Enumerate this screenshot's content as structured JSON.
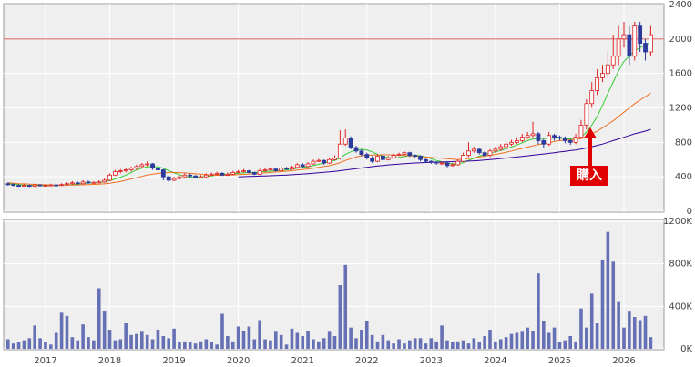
{
  "chart_data": [
    {
      "type": "candlestick",
      "ylim": [
        0,
        2400
      ],
      "yticks": [
        0,
        400,
        800,
        1200,
        1600,
        2000,
        2400
      ],
      "grid": true,
      "up_color": "#e02020",
      "down_color": "#2c3a9c",
      "hline": 2000,
      "hline_color": "#e07070",
      "annotation": "購入",
      "annotation_color": "#e00000",
      "open": [
        320,
        310,
        300,
        295,
        300,
        290,
        305,
        300,
        300,
        305,
        300,
        310,
        320,
        330,
        320,
        340,
        330,
        335,
        340,
        360,
        420,
        460,
        470,
        480,
        500,
        520,
        540,
        550,
        500,
        480,
        400,
        360,
        380,
        400,
        420,
        410,
        390,
        400,
        420,
        430,
        440,
        420,
        430,
        450,
        460,
        470,
        450,
        430,
        470,
        480,
        490,
        470,
        500,
        490,
        510,
        540,
        520,
        550,
        580,
        590,
        560,
        600,
        620,
        780,
        850,
        740,
        700,
        660,
        620,
        580,
        640,
        600,
        620,
        650,
        660,
        680,
        650,
        640,
        600,
        580,
        570,
        560,
        560,
        530,
        540,
        580,
        650,
        700,
        720,
        680,
        650,
        700,
        720,
        750,
        780,
        800,
        820,
        860,
        880,
        900,
        820,
        780,
        880,
        860,
        850,
        820,
        800,
        860,
        1000,
        1250,
        1400,
        1550,
        1600,
        1700,
        1800,
        2000,
        2050,
        1800,
        2150,
        1950,
        1850
      ],
      "high": [
        335,
        325,
        315,
        315,
        310,
        320,
        315,
        310,
        320,
        315,
        325,
        335,
        350,
        345,
        360,
        355,
        350,
        360,
        380,
        440,
        480,
        490,
        500,
        520,
        540,
        560,
        580,
        560,
        510,
        490,
        410,
        400,
        420,
        440,
        435,
        420,
        420,
        440,
        450,
        460,
        455,
        450,
        470,
        480,
        490,
        480,
        460,
        490,
        500,
        510,
        500,
        520,
        515,
        530,
        560,
        560,
        570,
        600,
        610,
        600,
        620,
        650,
        940,
        950,
        870,
        760,
        720,
        680,
        640,
        660,
        660,
        640,
        670,
        680,
        700,
        690,
        660,
        650,
        610,
        590,
        580,
        575,
        570,
        560,
        600,
        680,
        800,
        750,
        740,
        700,
        720,
        750,
        780,
        810,
        830,
        860,
        900,
        920,
        1040,
        920,
        840,
        920,
        900,
        880,
        870,
        840,
        900,
        1060,
        1300,
        1500,
        1650,
        1700,
        1850,
        2050,
        2150,
        2200,
        2150,
        2200,
        2200,
        2000,
        2150
      ],
      "low": [
        295,
        290,
        285,
        285,
        280,
        280,
        290,
        290,
        290,
        290,
        290,
        300,
        310,
        310,
        310,
        320,
        320,
        325,
        330,
        350,
        410,
        440,
        450,
        460,
        480,
        500,
        520,
        480,
        460,
        360,
        340,
        350,
        370,
        390,
        395,
        380,
        380,
        390,
        410,
        420,
        410,
        410,
        420,
        440,
        450,
        440,
        420,
        420,
        460,
        470,
        460,
        460,
        480,
        480,
        500,
        500,
        510,
        540,
        570,
        540,
        550,
        590,
        600,
        760,
        720,
        680,
        640,
        600,
        560,
        570,
        580,
        590,
        610,
        640,
        650,
        630,
        620,
        580,
        560,
        550,
        540,
        540,
        510,
        520,
        530,
        570,
        630,
        680,
        660,
        630,
        630,
        680,
        700,
        730,
        760,
        780,
        800,
        840,
        860,
        780,
        740,
        760,
        820,
        820,
        790,
        770,
        780,
        840,
        950,
        1200,
        1350,
        1500,
        1550,
        1650,
        1700,
        1900,
        1700,
        1750,
        1850,
        1750,
        1800
      ],
      "close": [
        310,
        300,
        295,
        300,
        290,
        305,
        300,
        300,
        305,
        300,
        310,
        320,
        330,
        320,
        340,
        330,
        335,
        340,
        360,
        420,
        460,
        470,
        480,
        500,
        520,
        540,
        550,
        500,
        480,
        400,
        360,
        380,
        400,
        420,
        410,
        390,
        400,
        420,
        430,
        440,
        420,
        430,
        450,
        460,
        470,
        450,
        430,
        470,
        480,
        490,
        470,
        500,
        490,
        510,
        540,
        520,
        550,
        580,
        590,
        560,
        600,
        620,
        780,
        850,
        740,
        700,
        660,
        620,
        580,
        640,
        600,
        620,
        650,
        660,
        680,
        650,
        640,
        600,
        580,
        570,
        560,
        560,
        530,
        540,
        580,
        650,
        700,
        720,
        680,
        650,
        700,
        720,
        750,
        780,
        800,
        820,
        860,
        880,
        900,
        820,
        780,
        880,
        860,
        850,
        820,
        800,
        860,
        1000,
        1250,
        1400,
        1550,
        1600,
        1700,
        1800,
        2000,
        2050,
        1800,
        2150,
        1950,
        1850,
        2050
      ],
      "lines": [
        {
          "color": "#33cc33",
          "values": [
            320,
            315,
            310,
            305,
            300,
            300,
            300,
            300,
            300,
            300,
            302,
            305,
            310,
            315,
            322,
            327,
            332,
            335,
            340,
            355,
            375,
            395,
            420,
            450,
            480,
            500,
            515,
            520,
            515,
            500,
            470,
            445,
            425,
            405,
            395,
            395,
            400,
            405,
            410,
            420,
            425,
            430,
            435,
            440,
            445,
            450,
            450,
            455,
            460,
            465,
            470,
            475,
            480,
            490,
            500,
            510,
            515,
            530,
            545,
            560,
            575,
            590,
            620,
            660,
            690,
            710,
            720,
            710,
            690,
            660,
            640,
            620,
            620,
            625,
            635,
            645,
            650,
            645,
            630,
            610,
            590,
            575,
            560,
            550,
            550,
            565,
            590,
            615,
            640,
            660,
            675,
            690,
            705,
            725,
            745,
            770,
            795,
            820,
            840,
            845,
            845,
            845,
            850,
            850,
            845,
            840,
            835,
            860,
            920,
            1000,
            1100,
            1230,
            1370,
            1500,
            1630,
            1740,
            1800,
            1860,
            1900,
            1930,
            1960
          ]
        },
        {
          "color": "#f07020",
          "values": [
            330,
            325,
            320,
            318,
            315,
            312,
            310,
            308,
            306,
            305,
            305,
            305,
            305,
            306,
            308,
            310,
            312,
            315,
            318,
            325,
            335,
            345,
            360,
            375,
            390,
            405,
            420,
            430,
            440,
            445,
            450,
            450,
            448,
            445,
            440,
            435,
            430,
            425,
            420,
            418,
            418,
            420,
            422,
            425,
            428,
            432,
            435,
            440,
            445,
            450,
            455,
            460,
            465,
            470,
            478,
            485,
            492,
            500,
            510,
            520,
            530,
            545,
            565,
            590,
            610,
            630,
            645,
            650,
            652,
            655,
            655,
            655,
            652,
            650,
            648,
            645,
            640,
            635,
            630,
            625,
            620,
            615,
            610,
            605,
            600,
            605,
            612,
            620,
            630,
            640,
            650,
            660,
            672,
            685,
            700,
            715,
            730,
            745,
            760,
            775,
            785,
            795,
            810,
            820,
            825,
            830,
            835,
            845,
            870,
            900,
            930,
            970,
            1010,
            1050,
            1100,
            1150,
            1200,
            1250,
            1290,
            1330,
            1370
          ]
        },
        {
          "color": "#330099",
          "values": [
            null,
            null,
            null,
            null,
            null,
            null,
            null,
            null,
            null,
            null,
            null,
            null,
            null,
            null,
            null,
            null,
            null,
            null,
            null,
            null,
            null,
            null,
            null,
            null,
            null,
            null,
            null,
            null,
            null,
            null,
            null,
            null,
            null,
            null,
            null,
            null,
            null,
            null,
            null,
            null,
            null,
            null,
            null,
            400,
            402,
            404,
            406,
            408,
            410,
            412,
            415,
            418,
            421,
            424,
            428,
            432,
            437,
            442,
            447,
            452,
            457,
            463,
            470,
            478,
            486,
            494,
            502,
            510,
            518,
            525,
            532,
            538,
            543,
            548,
            552,
            556,
            560,
            563,
            566,
            568,
            570,
            572,
            574,
            576,
            578,
            580,
            583,
            586,
            590,
            594,
            600,
            606,
            612,
            618,
            624,
            630,
            637,
            644,
            651,
            658,
            665,
            672,
            680,
            688,
            696,
            704,
            712,
            722,
            735,
            750,
            765,
            780,
            800,
            820,
            840,
            860,
            880,
            900,
            915,
            930,
            950
          ]
        }
      ]
    },
    {
      "type": "bar",
      "color": "#6670b4",
      "grid": true,
      "ylim": [
        0,
        1200000
      ],
      "yticks": [
        {
          "value": 0,
          "label": "0K"
        },
        {
          "value": 400000,
          "label": "400K"
        },
        {
          "value": 800000,
          "label": "800K"
        },
        {
          "value": 1200000,
          "label": "1200K"
        }
      ],
      "categories": [
        null,
        null,
        null,
        null,
        null,
        null,
        null,
        "2017",
        null,
        null,
        null,
        null,
        null,
        null,
        null,
        null,
        null,
        null,
        null,
        "2018",
        null,
        null,
        null,
        null,
        null,
        null,
        null,
        null,
        null,
        null,
        null,
        "2019",
        null,
        null,
        null,
        null,
        null,
        null,
        null,
        null,
        null,
        null,
        null,
        "2020",
        null,
        null,
        null,
        null,
        null,
        null,
        null,
        null,
        null,
        null,
        null,
        "2021",
        null,
        null,
        null,
        null,
        null,
        null,
        null,
        null,
        null,
        null,
        null,
        "2022",
        null,
        null,
        null,
        null,
        null,
        null,
        null,
        null,
        null,
        null,
        null,
        "2023",
        null,
        null,
        null,
        null,
        null,
        null,
        null,
        null,
        null,
        null,
        null,
        "2024",
        null,
        null,
        null,
        null,
        null,
        null,
        null,
        null,
        null,
        null,
        null,
        "2025",
        null,
        null,
        null,
        null,
        null,
        null,
        null,
        null,
        null,
        null,
        null,
        "2026",
        null,
        null,
        null,
        null,
        null
      ],
      "values": [
        90000,
        50000,
        60000,
        80000,
        100000,
        220000,
        100000,
        60000,
        40000,
        150000,
        340000,
        310000,
        110000,
        80000,
        230000,
        110000,
        80000,
        570000,
        360000,
        180000,
        80000,
        90000,
        240000,
        130000,
        140000,
        160000,
        130000,
        90000,
        180000,
        120000,
        100000,
        190000,
        60000,
        70000,
        60000,
        50000,
        70000,
        90000,
        60000,
        40000,
        330000,
        120000,
        70000,
        210000,
        170000,
        210000,
        90000,
        270000,
        90000,
        80000,
        160000,
        130000,
        40000,
        190000,
        150000,
        120000,
        170000,
        90000,
        70000,
        100000,
        160000,
        120000,
        600000,
        790000,
        200000,
        100000,
        180000,
        260000,
        130000,
        70000,
        130000,
        80000,
        50000,
        90000,
        50000,
        80000,
        100000,
        100000,
        50000,
        100000,
        70000,
        220000,
        80000,
        60000,
        70000,
        80000,
        50000,
        100000,
        60000,
        120000,
        180000,
        70000,
        90000,
        110000,
        140000,
        150000,
        160000,
        200000,
        170000,
        710000,
        260000,
        150000,
        200000,
        60000,
        80000,
        120000,
        70000,
        380000,
        200000,
        520000,
        240000,
        840000,
        1100000,
        820000,
        440000,
        200000,
        350000,
        300000,
        270000,
        310000,
        110000
      ]
    }
  ]
}
